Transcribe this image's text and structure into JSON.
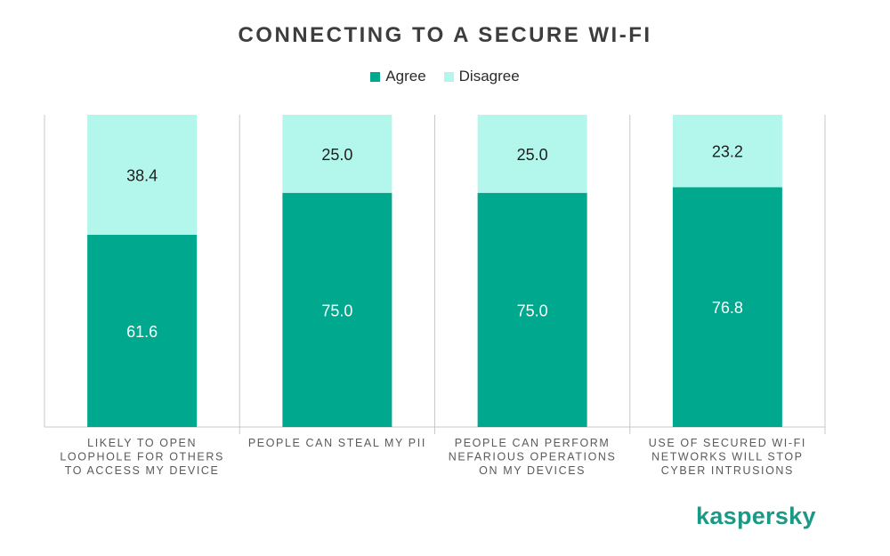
{
  "colors": {
    "agree": "#00a88e",
    "disagree": "#b3f7ec",
    "axis": "#c8c8c8",
    "label_text": "#5a5a5a",
    "value_dark": "#1e1e1e",
    "value_light": "#ffffff",
    "brand": "#1a9a86"
  },
  "brand": {
    "logo_text": "kaspersky"
  },
  "chart_data": {
    "type": "bar",
    "stacked": true,
    "title": "CONNECTING TO A SECURE WI-FI",
    "legend_position": "top-center",
    "ylim": [
      0,
      100
    ],
    "grid": false,
    "categories": [
      [
        "LIKELY TO OPEN",
        "LOOPHOLE FOR OTHERS",
        "TO ACCESS MY DEVICE"
      ],
      [
        "PEOPLE CAN STEAL MY PII"
      ],
      [
        "PEOPLE CAN PERFORM",
        "NEFARIOUS OPERATIONS",
        "ON MY DEVICES"
      ],
      [
        "USE OF SECURED WI-FI",
        "NETWORKS WILL STOP",
        "CYBER INTRUSIONS"
      ]
    ],
    "series": [
      {
        "name": "Agree",
        "values": [
          61.6,
          75.0,
          75.0,
          76.8
        ]
      },
      {
        "name": "Disagree",
        "values": [
          38.4,
          25.0,
          25.0,
          23.2
        ]
      }
    ]
  }
}
